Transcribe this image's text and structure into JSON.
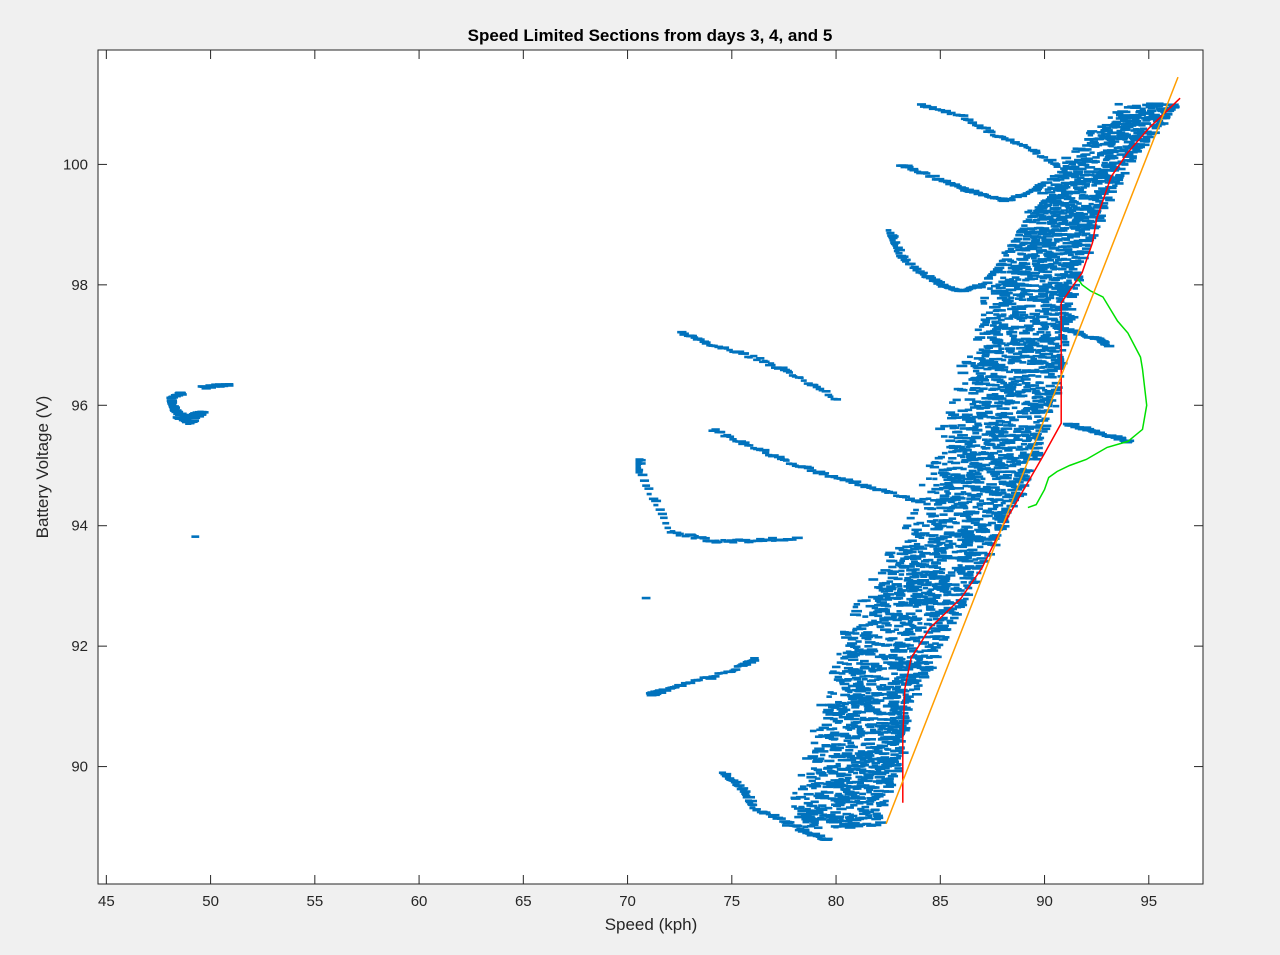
{
  "chart_data": {
    "type": "scatter",
    "title": "Speed Limited Sections from days 3, 4, and 5",
    "xlabel": "Speed (kph)",
    "ylabel": "Battery Voltage (V)",
    "xlim": [
      44.6,
      97.6
    ],
    "ylim": [
      88.05,
      101.9
    ],
    "xticks": [
      45,
      50,
      55,
      60,
      65,
      70,
      75,
      80,
      85,
      90,
      95
    ],
    "yticks": [
      90,
      92,
      94,
      96,
      98,
      100
    ],
    "grid": false,
    "legend": "none",
    "series": [
      {
        "kind": "scatter",
        "color": "#0072BD",
        "clusters": [
          {
            "x": [
              48.5,
              48.0,
              48.2,
              48.8,
              49.6,
              49.0,
              48.3
            ],
            "y": [
              96.2,
              96.1,
              95.9,
              95.8,
              95.9,
              95.7,
              95.8
            ]
          },
          {
            "x": [
              49.5,
              50.8
            ],
            "y": [
              96.3,
              96.35
            ]
          },
          {
            "x": [
              49.2
            ],
            "y": [
              93.82
            ]
          },
          {
            "x": [
              70.5,
              70.5,
              72.0,
              74.0,
              76.0,
              78.0
            ],
            "y": [
              95.1,
              94.9,
              93.9,
              93.75,
              93.75,
              93.8
            ]
          },
          {
            "x": [
              71.0,
              71.5,
              73.0,
              75.0,
              76.0
            ],
            "y": [
              91.2,
              91.25,
              91.4,
              91.6,
              91.8
            ]
          },
          {
            "x": [
              70.8
            ],
            "y": [
              92.8
            ]
          },
          {
            "x": [
              72.5,
              74.0,
              76.0,
              78.0,
              80.0
            ],
            "y": [
              97.2,
              97.0,
              96.8,
              96.5,
              96.1
            ]
          },
          {
            "x": [
              74.0,
              76.0,
              78.0,
              80.0,
              82.0,
              84.0
            ],
            "y": [
              95.6,
              95.3,
              95.0,
              94.8,
              94.6,
              94.4
            ]
          },
          {
            "x": [
              82.5,
              83.0,
              84.0,
              85.0,
              86.0,
              87.0,
              88.0,
              89.0,
              90.0
            ],
            "y": [
              98.9,
              98.5,
              98.2,
              98.0,
              97.9,
              98.0,
              98.4,
              99.0,
              99.4
            ]
          },
          {
            "x": [
              83.0,
              84.5,
              86.0,
              87.0,
              88.0,
              89.0,
              90.0
            ],
            "y": [
              100.0,
              99.8,
              99.6,
              99.5,
              99.4,
              99.5,
              99.7
            ]
          },
          {
            "x": [
              84.0,
              86.0,
              87.5,
              89.0,
              90.5
            ],
            "y": [
              101.0,
              100.8,
              100.5,
              100.3,
              100.0
            ]
          },
          {
            "x": [
              90.5,
              91.5,
              92.5,
              93.0
            ],
            "y": [
              97.3,
              97.2,
              97.1,
              97.0
            ]
          },
          {
            "x": [
              91.0,
              92.0,
              93.0,
              94.0
            ],
            "y": [
              95.7,
              95.6,
              95.5,
              95.4
            ]
          },
          {
            "x": [
              74.5,
              75.5,
              76.0,
              77.5,
              78.5,
              79.5
            ],
            "y": [
              89.9,
              89.6,
              89.3,
              89.1,
              88.9,
              88.8
            ]
          }
        ],
        "band": [
          {
            "y": 89.0,
            "x_min": 76.5,
            "x_max": 82.0
          },
          {
            "y": 90.0,
            "x_min": 77.5,
            "x_max": 83.0
          },
          {
            "y": 91.0,
            "x_min": 78.5,
            "x_max": 83.5
          },
          {
            "y": 92.0,
            "x_min": 79.0,
            "x_max": 85.0
          },
          {
            "y": 93.0,
            "x_min": 80.5,
            "x_max": 86.5
          },
          {
            "y": 94.0,
            "x_min": 82.5,
            "x_max": 88.0
          },
          {
            "y": 95.0,
            "x_min": 83.5,
            "x_max": 89.5
          },
          {
            "y": 96.0,
            "x_min": 84.5,
            "x_max": 90.5
          },
          {
            "y": 97.0,
            "x_min": 85.5,
            "x_max": 91.0
          },
          {
            "y": 98.0,
            "x_min": 86.5,
            "x_max": 91.5
          },
          {
            "y": 99.0,
            "x_min": 88.0,
            "x_max": 92.5
          },
          {
            "y": 100.0,
            "x_min": 90.0,
            "x_max": 94.0
          },
          {
            "y": 101.0,
            "x_min": 93.0,
            "x_max": 96.3
          }
        ]
      },
      {
        "kind": "line",
        "color": "#FF0000",
        "x": [
          83.2,
          83.2,
          83.3,
          83.6,
          84.5,
          86.0,
          87.0,
          88.0,
          89.0,
          90.0,
          90.8,
          90.8,
          90.8,
          91.8,
          92.3,
          92.5,
          93.0,
          93.2,
          94.0,
          95.0,
          96.5
        ],
        "y": [
          89.4,
          90.5,
          91.3,
          91.8,
          92.3,
          92.8,
          93.3,
          94.0,
          94.6,
          95.2,
          95.7,
          96.5,
          97.7,
          98.2,
          98.7,
          99.1,
          99.6,
          99.8,
          100.2,
          100.6,
          101.1
        ]
      },
      {
        "kind": "line",
        "color": "#00E000",
        "x": [
          89.2,
          89.6,
          90.0,
          90.2,
          90.6,
          91.2,
          92.0,
          93.0,
          94.0,
          94.7,
          94.9,
          94.7,
          94.6,
          94.0,
          93.5,
          92.8,
          92.2,
          91.8,
          91.6
        ],
        "y": [
          94.3,
          94.35,
          94.6,
          94.8,
          94.9,
          95.0,
          95.1,
          95.3,
          95.4,
          95.6,
          96.0,
          96.6,
          96.8,
          97.2,
          97.4,
          97.8,
          97.9,
          98.0,
          98.1
        ]
      },
      {
        "kind": "line",
        "color": "#FF9D00",
        "x": [
          82.4,
          96.4
        ],
        "y": [
          89.05,
          101.45
        ]
      }
    ]
  }
}
